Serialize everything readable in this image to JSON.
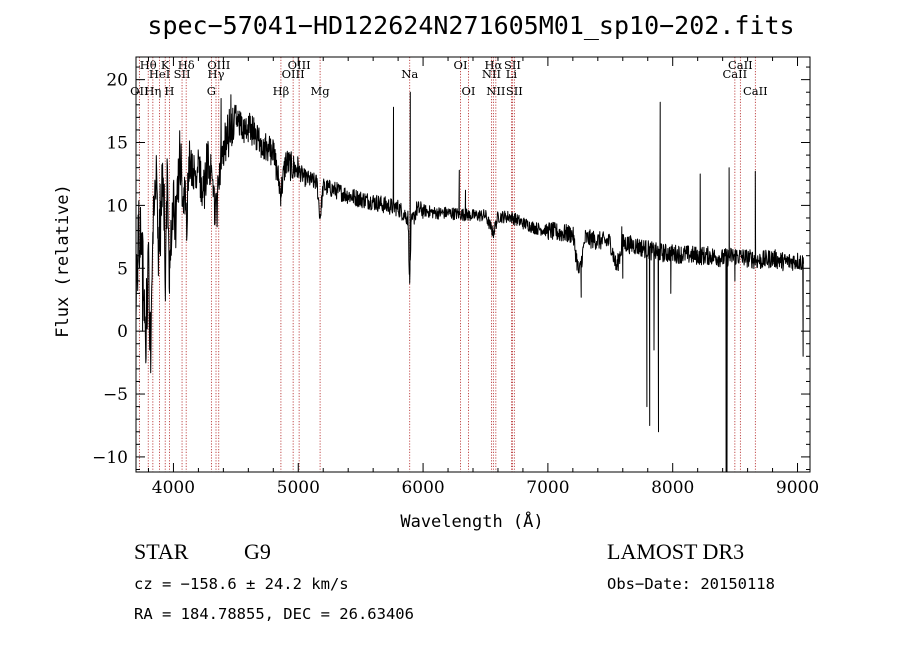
{
  "chart_data": {
    "type": "line",
    "title": "spec−57041−HD122624N271605M01_sp10−202.fits",
    "xlabel": "Wavelength (Å)",
    "ylabel": "Flux (relative)",
    "xlim": [
      3700,
      9100
    ],
    "ylim": [
      -11.2,
      21.8
    ],
    "xticks": [
      4000,
      5000,
      6000,
      7000,
      8000,
      9000
    ],
    "yticks": [
      -10,
      -5,
      0,
      5,
      10,
      15,
      20
    ],
    "xtick_labels": [
      "4000",
      "5000",
      "6000",
      "7000",
      "8000",
      "9000"
    ],
    "ytick_labels": [
      "−10",
      "−5",
      "0",
      "5",
      "10",
      "15",
      "20"
    ],
    "grid": false,
    "spectrum": {
      "name": "flux",
      "anchors": [
        [
          3700,
          2
        ],
        [
          3720,
          7
        ],
        [
          3740,
          9
        ],
        [
          3760,
          4
        ],
        [
          3780,
          0
        ],
        [
          3800,
          5
        ],
        [
          3820,
          -1.5
        ],
        [
          3840,
          8
        ],
        [
          3860,
          12
        ],
        [
          3880,
          6
        ],
        [
          3900,
          10
        ],
        [
          3920,
          13
        ],
        [
          3935,
          4
        ],
        [
          3950,
          12
        ],
        [
          3970,
          5
        ],
        [
          3990,
          11
        ],
        [
          4020,
          9
        ],
        [
          4050,
          13
        ],
        [
          4080,
          11
        ],
        [
          4100,
          8
        ],
        [
          4130,
          13.5
        ],
        [
          4160,
          12
        ],
        [
          4200,
          13
        ],
        [
          4240,
          11
        ],
        [
          4280,
          14
        ],
        [
          4300,
          12
        ],
        [
          4340,
          9
        ],
        [
          4380,
          14
        ],
        [
          4420,
          15
        ],
        [
          4460,
          16
        ],
        [
          4500,
          17
        ],
        [
          4550,
          16
        ],
        [
          4600,
          16.2
        ],
        [
          4650,
          15.8
        ],
        [
          4700,
          15
        ],
        [
          4750,
          14.5
        ],
        [
          4800,
          14.3
        ],
        [
          4861,
          11
        ],
        [
          4900,
          13.5
        ],
        [
          4950,
          13
        ],
        [
          5000,
          12.8
        ],
        [
          5050,
          12.2
        ],
        [
          5100,
          12
        ],
        [
          5150,
          11.8
        ],
        [
          5175,
          9
        ],
        [
          5200,
          11.5
        ],
        [
          5300,
          11.2
        ],
        [
          5400,
          10.8
        ],
        [
          5500,
          10.5
        ],
        [
          5600,
          10.3
        ],
        [
          5700,
          10
        ],
        [
          5800,
          9.8
        ],
        [
          5880,
          9
        ],
        [
          5893,
          3.8
        ],
        [
          5905,
          8.5
        ],
        [
          5950,
          9.7
        ],
        [
          6000,
          9.6
        ],
        [
          6100,
          9.4
        ],
        [
          6200,
          9.4
        ],
        [
          6300,
          9.3
        ],
        [
          6400,
          9.2
        ],
        [
          6500,
          9.2
        ],
        [
          6563,
          7.8
        ],
        [
          6600,
          9.1
        ],
        [
          6700,
          9.1
        ],
        [
          6800,
          8.6
        ],
        [
          6900,
          8.2
        ],
        [
          7000,
          8.0
        ],
        [
          7100,
          7.8
        ],
        [
          7200,
          7.7
        ],
        [
          7250,
          4.5
        ],
        [
          7300,
          7.4
        ],
        [
          7400,
          7.2
        ],
        [
          7500,
          7.1
        ],
        [
          7550,
          5
        ],
        [
          7600,
          7
        ],
        [
          7700,
          6.8
        ],
        [
          7800,
          6.5
        ],
        [
          7850,
          6.3
        ],
        [
          7950,
          6.2
        ],
        [
          8100,
          6.1
        ],
        [
          8200,
          6.0
        ],
        [
          8300,
          6.0
        ],
        [
          8400,
          5.8
        ],
        [
          8500,
          6.0
        ],
        [
          8600,
          5.8
        ],
        [
          8700,
          5.6
        ],
        [
          8800,
          5.8
        ],
        [
          8900,
          5.5
        ],
        [
          9000,
          5.6
        ],
        [
          9050,
          5.4
        ]
      ],
      "features": [
        [
          3753,
          0.0
        ],
        [
          3810,
          -1.5
        ],
        [
          3968,
          3.0
        ],
        [
          4382,
          18.5
        ],
        [
          4460,
          18.8
        ],
        [
          4861,
          11.0
        ],
        [
          4990,
          13.0
        ],
        [
          5175,
          9.0
        ],
        [
          5763,
          17.8
        ],
        [
          5893,
          3.8
        ],
        [
          5898,
          19.0
        ],
        [
          6290,
          12.8
        ],
        [
          6340,
          11.2
        ],
        [
          6563,
          7.5
        ],
        [
          7267,
          2.7
        ],
        [
          7592,
          8.3
        ],
        [
          7600,
          4.2
        ],
        [
          7793,
          -6.0
        ],
        [
          7816,
          -7.5
        ],
        [
          7850,
          -1.5
        ],
        [
          7886,
          -8.0
        ],
        [
          7900,
          18.2
        ],
        [
          7985,
          3.0
        ],
        [
          8198,
          5.5
        ],
        [
          8220,
          12.5
        ],
        [
          8428,
          -11.2
        ],
        [
          8435,
          -11.2
        ],
        [
          8452,
          13.0
        ],
        [
          8498,
          4.0
        ],
        [
          8662,
          12.7
        ],
        [
          8843,
          5.8
        ],
        [
          9045,
          -2.0
        ]
      ],
      "noise_seed": 57041
    },
    "spectral_lines": [
      {
        "label": "OII",
        "wavelength": 3727,
        "row": 3
      },
      {
        "label": "Hθ",
        "wavelength": 3798,
        "row": 1
      },
      {
        "label": "Hη",
        "wavelength": 3835,
        "row": 3
      },
      {
        "label": "HeI",
        "wavelength": 3889,
        "row": 2
      },
      {
        "label": "K",
        "wavelength": 3934,
        "row": 1
      },
      {
        "label": "H",
        "wavelength": 3968,
        "row": 3
      },
      {
        "label": "SII",
        "wavelength": 4069,
        "row": 2
      },
      {
        "label": "Hδ",
        "wavelength": 4102,
        "row": 1
      },
      {
        "label": "G",
        "wavelength": 4304,
        "row": 3
      },
      {
        "label": "Hγ",
        "wavelength": 4341,
        "row": 2
      },
      {
        "label": "OIII",
        "wavelength": 4363,
        "row": 1
      },
      {
        "label": "Hβ",
        "wavelength": 4861,
        "row": 3
      },
      {
        "label": "OIII",
        "wavelength": 4959,
        "row": 2
      },
      {
        "label": "OIII",
        "wavelength": 5007,
        "row": 1
      },
      {
        "label": "Mg",
        "wavelength": 5175,
        "row": 3
      },
      {
        "label": "Na",
        "wavelength": 5893,
        "row": 2
      },
      {
        "label": "OI",
        "wavelength": 6300,
        "row": 1
      },
      {
        "label": "OI",
        "wavelength": 6364,
        "row": 3
      },
      {
        "label": "NII",
        "wavelength": 6548,
        "row": 2
      },
      {
        "label": "Hα",
        "wavelength": 6563,
        "row": 1
      },
      {
        "label": "NII",
        "wavelength": 6583,
        "row": 3
      },
      {
        "label": "SII",
        "wavelength": 6716,
        "row": 1
      },
      {
        "label": "Li",
        "wavelength": 6708,
        "row": 2
      },
      {
        "label": "SII",
        "wavelength": 6731,
        "row": 3
      },
      {
        "label": "CaII",
        "wavelength": 8498,
        "row": 2
      },
      {
        "label": "CaII",
        "wavelength": 8542,
        "row": 1
      },
      {
        "label": "CaII",
        "wavelength": 8662,
        "row": 3
      }
    ]
  },
  "info": {
    "class_label": "STAR",
    "subclass": "G9",
    "survey": "LAMOST DR3",
    "cz": "cz = −158.6 ± 24.2 km/s",
    "obs_date": "Obs−Date: 20150118",
    "coords": "RA = 184.78855, DEC =  26.63406"
  },
  "colors": {
    "spectrum": "#000000",
    "line_markers": "#b22222",
    "axes": "#000000",
    "background": "#ffffff"
  }
}
